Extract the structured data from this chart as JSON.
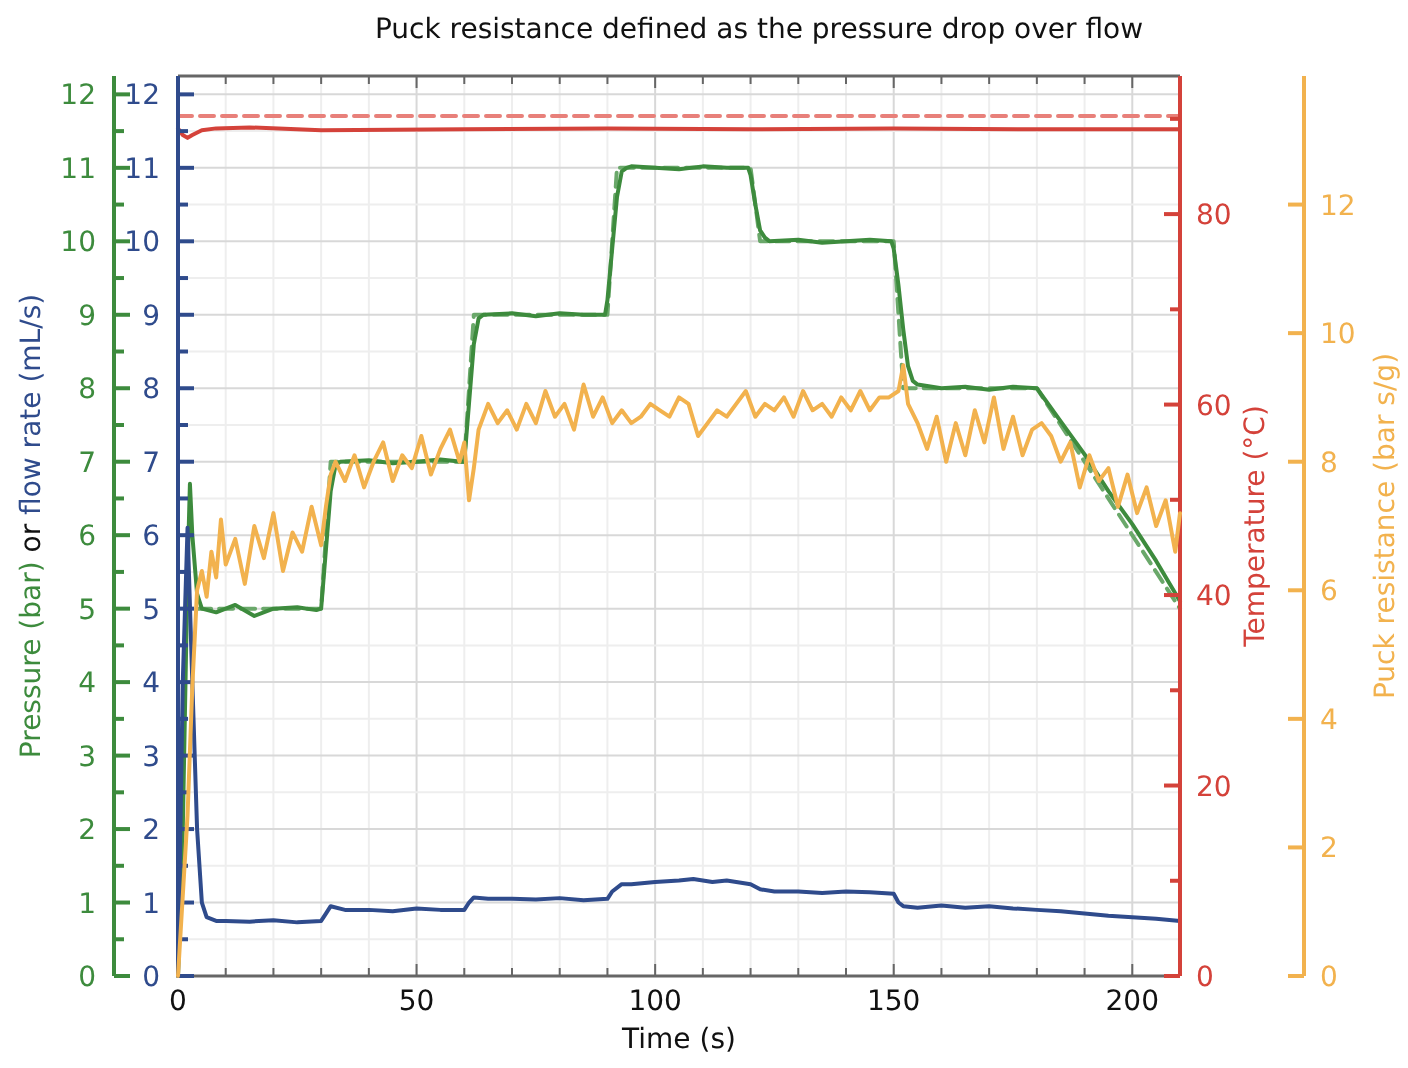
{
  "chart_data": [
    {
      "type": "line",
      "title": "Puck resistance defined as the pressure drop over flow",
      "xlabel": "Time (s)",
      "ylabel": "Pressure (bar) or flow rate (mL/s)",
      "y3label": "Temperature (°C)",
      "grid": true,
      "xlim": [
        0,
        210
      ],
      "xticks": [
        0,
        {
          "value": 10,
          "label": null
        },
        {
          "value": 20,
          "label": null
        },
        {
          "value": 30,
          "label": null
        },
        {
          "value": 40,
          "label": null
        },
        50,
        {
          "value": 60,
          "label": null
        },
        {
          "value": 70,
          "label": null
        },
        {
          "value": 80,
          "label": null
        },
        {
          "value": 90,
          "label": null
        },
        100,
        {
          "value": 110,
          "label": null
        },
        {
          "value": 120,
          "label": null
        },
        {
          "value": 130,
          "label": null
        },
        {
          "value": 140,
          "label": null
        },
        150,
        {
          "value": 160,
          "label": null
        },
        {
          "value": 170,
          "label": null
        },
        {
          "value": 180,
          "label": null
        },
        {
          "value": 190,
          "label": null
        },
        200,
        {
          "value": 210,
          "label": null
        }
      ],
      "ylim": [
        0,
        12.25
      ],
      "yticks": [
        0,
        {
          "value": 0.5,
          "label": null
        },
        1,
        {
          "value": 1.5,
          "label": null
        },
        2,
        {
          "value": 2.5,
          "label": null
        },
        3,
        {
          "value": 3.5,
          "label": null
        },
        4,
        {
          "value": 4.5,
          "label": null
        },
        5,
        {
          "value": 5.5,
          "label": null
        },
        6,
        {
          "value": 6.5,
          "label": null
        },
        7,
        {
          "value": 7.5,
          "label": null
        },
        8,
        {
          "value": 8.5,
          "label": null
        },
        9,
        {
          "value": 9.5,
          "label": null
        },
        10,
        {
          "value": 10.5,
          "label": null
        },
        11,
        {
          "value": 11.5,
          "label": null
        },
        12
      ],
      "y2lim": [
        0,
        12.25
      ],
      "y2ticks": [
        0,
        {
          "value": 0.5,
          "label": null
        },
        1,
        {
          "value": 1.5,
          "label": null
        },
        2,
        {
          "value": 2.5,
          "label": null
        },
        3,
        {
          "value": 3.5,
          "label": null
        },
        4,
        {
          "value": 4.5,
          "label": null
        },
        5,
        {
          "value": 5.5,
          "label": null
        },
        6,
        {
          "value": 6.5,
          "label": null
        },
        7,
        {
          "value": 7.5,
          "label": null
        },
        8,
        {
          "value": 8.5,
          "label": null
        },
        9,
        {
          "value": 9.5,
          "label": null
        },
        10,
        {
          "value": 10.5,
          "label": null
        },
        11,
        {
          "value": 11.5,
          "label": null
        },
        12
      ],
      "y3lim": [
        0,
        94.5
      ],
      "y3ticks": [
        0,
        {
          "value": 10,
          "label": null
        },
        20,
        {
          "value": 30,
          "label": null
        },
        40,
        {
          "value": 50,
          "label": null
        },
        60,
        {
          "value": 70,
          "label": null
        },
        80,
        {
          "value": 90,
          "label": null
        }
      ],
      "series": [
        {
          "color": "#e8807a",
          "axis": "y3",
          "line_style": "dashed",
          "x": [
            0,
            210
          ],
          "values": [
            90.3,
            90.3
          ]
        },
        {
          "color": "#d4423a",
          "axis": "y3",
          "line_style": "solid",
          "x": [
            0,
            1,
            2,
            3,
            5,
            8,
            15,
            30,
            60,
            90,
            120,
            150,
            180,
            210
          ],
          "values": [
            89,
            88.3,
            88,
            88.3,
            88.8,
            89,
            89.1,
            88.8,
            88.9,
            89,
            88.9,
            89,
            88.9,
            88.9
          ]
        },
        {
          "color": "#6aa86a",
          "line_style": "dashed",
          "x": [
            4,
            30,
            32,
            60,
            62,
            90,
            92,
            120,
            122,
            150,
            152,
            180,
            210
          ],
          "values": [
            5,
            5,
            7,
            7,
            9,
            9,
            11,
            11,
            10,
            10,
            8,
            8,
            5
          ]
        },
        {
          "color": "#3d8b3d",
          "line_style": "solid",
          "x": [
            0,
            1,
            2,
            2.5,
            3,
            4,
            5,
            8,
            12,
            16,
            20,
            25,
            29,
            30,
            31,
            32,
            33,
            34,
            40,
            45,
            50,
            55,
            59.5,
            60,
            61,
            62,
            63,
            64,
            70,
            75,
            80,
            85,
            89.5,
            90,
            91,
            92,
            93,
            94,
            95,
            100,
            105,
            110,
            115,
            119.5,
            120,
            121,
            122,
            123,
            124,
            130,
            135,
            140,
            145,
            149.5,
            150,
            151,
            152,
            153,
            154,
            155,
            160,
            165,
            170,
            175,
            180,
            185,
            190,
            195,
            200,
            205,
            210
          ],
          "values": [
            0,
            2,
            5.5,
            6.7,
            6,
            5.2,
            5.0,
            4.95,
            5.05,
            4.9,
            5.0,
            5.02,
            4.98,
            5.0,
            5.8,
            6.6,
            6.95,
            7.0,
            7.02,
            6.98,
            7.0,
            7.03,
            7.0,
            7.0,
            7.8,
            8.6,
            8.95,
            9.0,
            9.02,
            8.98,
            9.02,
            9.0,
            9.0,
            9.2,
            9.9,
            10.6,
            10.95,
            11.0,
            11.02,
            11.0,
            10.98,
            11.02,
            11.0,
            11.0,
            10.9,
            10.5,
            10.15,
            10.05,
            10.0,
            10.02,
            9.98,
            10.0,
            10.02,
            10.0,
            9.9,
            9.4,
            8.8,
            8.3,
            8.1,
            8.05,
            8.0,
            8.02,
            7.98,
            8.02,
            8.0,
            7.55,
            7.1,
            6.6,
            6.15,
            5.65,
            5.1
          ]
        },
        {
          "color": "#2f4b8c",
          "axis": "y2",
          "line_style": "solid",
          "x": [
            0,
            1,
            2,
            3,
            4,
            5,
            6,
            8,
            10,
            15,
            20,
            25,
            30,
            31,
            32,
            35,
            40,
            45,
            50,
            55,
            60,
            61,
            62,
            65,
            70,
            75,
            80,
            85,
            90,
            91,
            93,
            95,
            100,
            105,
            108,
            112,
            115,
            120,
            122,
            125,
            130,
            135,
            140,
            145,
            150,
            151,
            152,
            155,
            160,
            165,
            170,
            175,
            180,
            185,
            190,
            195,
            200,
            205,
            210
          ],
          "values": [
            0,
            4,
            6.1,
            4,
            2,
            1,
            0.8,
            0.75,
            0.75,
            0.74,
            0.76,
            0.73,
            0.75,
            0.85,
            0.95,
            0.9,
            0.9,
            0.88,
            0.92,
            0.9,
            0.9,
            1.0,
            1.07,
            1.05,
            1.05,
            1.04,
            1.06,
            1.03,
            1.05,
            1.15,
            1.25,
            1.25,
            1.28,
            1.3,
            1.32,
            1.28,
            1.3,
            1.25,
            1.18,
            1.15,
            1.15,
            1.13,
            1.15,
            1.14,
            1.12,
            1.0,
            0.95,
            0.93,
            0.96,
            0.93,
            0.95,
            0.92,
            0.9,
            0.88,
            0.85,
            0.82,
            0.8,
            0.78,
            0.75
          ]
        }
      ]
    },
    {
      "type": "line",
      "ylabel": "Puck resistance (bar s/g)",
      "tick_labels": "y",
      "xlim": [
        0,
        210
      ],
      "ylim": [
        0,
        14
      ],
      "yticks": [
        0,
        2,
        4,
        6,
        8,
        10,
        12
      ],
      "series": [
        {
          "color": "#f2b24e",
          "line_style": "solid",
          "x": [
            0,
            2,
            3,
            4,
            5,
            6,
            7,
            8,
            9,
            10,
            12,
            14,
            16,
            18,
            20,
            22,
            24,
            26,
            28,
            30,
            31,
            32,
            33,
            35,
            37,
            39,
            41,
            43,
            45,
            47,
            49,
            51,
            53,
            55,
            57,
            59,
            60,
            61,
            62,
            63,
            65,
            67,
            69,
            71,
            73,
            75,
            77,
            79,
            81,
            83,
            85,
            87,
            89,
            91,
            93,
            95,
            97,
            99,
            101,
            103,
            105,
            107,
            109,
            111,
            113,
            115,
            117,
            119,
            121,
            123,
            125,
            127,
            129,
            131,
            133,
            135,
            137,
            139,
            141,
            143,
            145,
            147,
            149,
            151,
            152,
            153,
            155,
            157,
            159,
            161,
            163,
            165,
            167,
            169,
            171,
            173,
            175,
            177,
            179,
            181,
            183,
            185,
            187,
            189,
            191,
            193,
            195,
            197,
            199,
            201,
            203,
            205,
            207,
            209,
            210
          ],
          "values": [
            0,
            2.5,
            4.5,
            6.0,
            6.3,
            5.9,
            6.6,
            6.2,
            7.1,
            6.4,
            6.8,
            6.1,
            7.0,
            6.5,
            7.2,
            6.3,
            6.9,
            6.6,
            7.3,
            6.7,
            7.3,
            7.8,
            8.0,
            7.7,
            8.1,
            7.6,
            8.0,
            8.3,
            7.7,
            8.1,
            7.9,
            8.4,
            7.8,
            8.2,
            8.5,
            8.0,
            8.3,
            7.4,
            7.9,
            8.5,
            8.9,
            8.6,
            8.8,
            8.5,
            8.9,
            8.6,
            9.1,
            8.7,
            8.9,
            8.5,
            9.2,
            8.7,
            9.0,
            8.6,
            8.8,
            8.6,
            8.7,
            8.9,
            8.8,
            8.7,
            9.0,
            8.9,
            8.4,
            8.6,
            8.8,
            8.7,
            8.9,
            9.1,
            8.7,
            8.9,
            8.8,
            9.0,
            8.7,
            9.1,
            8.8,
            8.9,
            8.7,
            9.0,
            8.8,
            9.1,
            8.8,
            9.0,
            9.0,
            9.1,
            9.5,
            8.9,
            8.6,
            8.2,
            8.7,
            8.0,
            8.6,
            8.1,
            8.8,
            8.3,
            9.0,
            8.2,
            8.7,
            8.1,
            8.5,
            8.6,
            8.4,
            8.0,
            8.3,
            7.6,
            8.1,
            7.7,
            7.9,
            7.3,
            7.8,
            7.2,
            7.6,
            7.0,
            7.4,
            6.6,
            7.2
          ]
        }
      ]
    }
  ]
}
